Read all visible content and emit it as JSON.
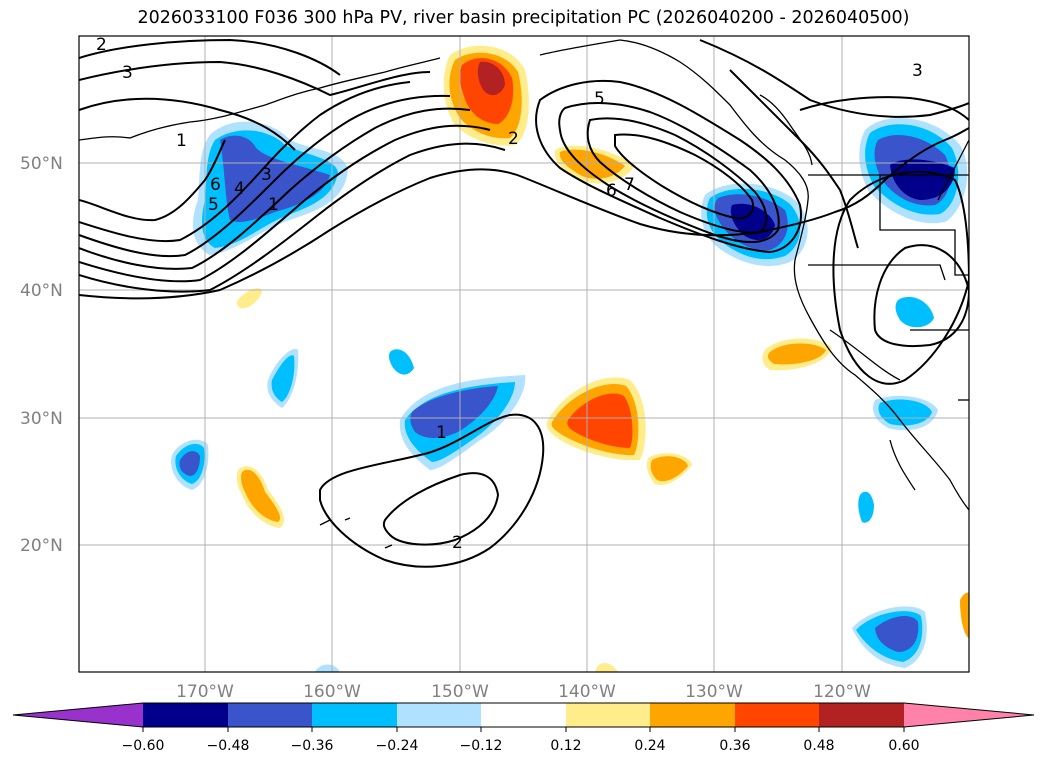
{
  "title": "2026033100 F036 300 hPa PV, river basin precipitation PC (2026040200 - 2026040500)",
  "lat_labels": [
    "50°N",
    "40°N",
    "30°N",
    "20°N"
  ],
  "lon_labels": [
    "170°W",
    "160°W",
    "150°W",
    "140°W",
    "130°W",
    "120°W"
  ],
  "contour_labels": [
    "2",
    "3",
    "1",
    "6",
    "5",
    "4",
    "3",
    "1",
    "2",
    "5",
    "6",
    "7",
    "3",
    "1",
    "2"
  ],
  "colorbar": {
    "ticks": [
      "−0.60",
      "−0.48",
      "−0.36",
      "−0.24",
      "−0.12",
      "0.12",
      "0.24",
      "0.36",
      "0.48",
      "0.60"
    ],
    "colors": [
      "#9932cc",
      "#00008b",
      "#3a55cc",
      "#00bfff",
      "#b0e2ff",
      "#ffffff",
      "#ffec8b",
      "#ffa500",
      "#ff4500",
      "#b22222",
      "#ff82ab"
    ]
  },
  "palette": {
    "grid": "#b0b0b0",
    "contour": "#000000",
    "coast": "#000000"
  }
}
